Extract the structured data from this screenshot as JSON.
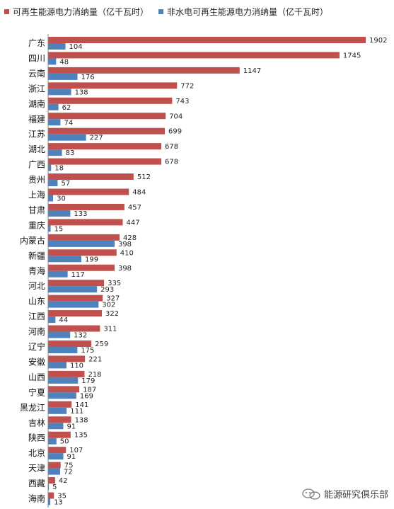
{
  "colors": {
    "series1": "#c0504d",
    "series2": "#4f81bd",
    "axis": "#888888"
  },
  "watermark": {
    "icon": "wechat-icon",
    "text": "能源研究俱乐部"
  },
  "chart_data": {
    "type": "bar",
    "orientation": "horizontal",
    "categories": [
      "广东",
      "四川",
      "云南",
      "浙江",
      "湖南",
      "福建",
      "江苏",
      "湖北",
      "广西",
      "贵州",
      "上海",
      "甘肃",
      "重庆",
      "内蒙古",
      "新疆",
      "青海",
      "河北",
      "山东",
      "江西",
      "河南",
      "辽宁",
      "安徽",
      "山西",
      "宁夏",
      "黑龙江",
      "吉林",
      "陕西",
      "北京",
      "天津",
      "西藏",
      "海南"
    ],
    "series": [
      {
        "name": "可再生能源电力消纳量（亿千瓦时）",
        "values": [
          1902,
          1745,
          1147,
          772,
          743,
          704,
          699,
          678,
          678,
          512,
          484,
          457,
          447,
          428,
          410,
          398,
          335,
          327,
          322,
          311,
          259,
          221,
          218,
          187,
          141,
          138,
          135,
          107,
          75,
          42,
          35
        ]
      },
      {
        "name": "非水电可再生能源电力消纳量（亿千瓦时）",
        "values": [
          104,
          48,
          176,
          138,
          62,
          74,
          227,
          83,
          18,
          57,
          30,
          133,
          15,
          398,
          199,
          117,
          293,
          302,
          44,
          132,
          175,
          110,
          179,
          169,
          111,
          91,
          50,
          91,
          72,
          5,
          13
        ]
      }
    ],
    "xlim": [
      0,
      1902
    ],
    "grid": false,
    "legend_position": "top"
  }
}
